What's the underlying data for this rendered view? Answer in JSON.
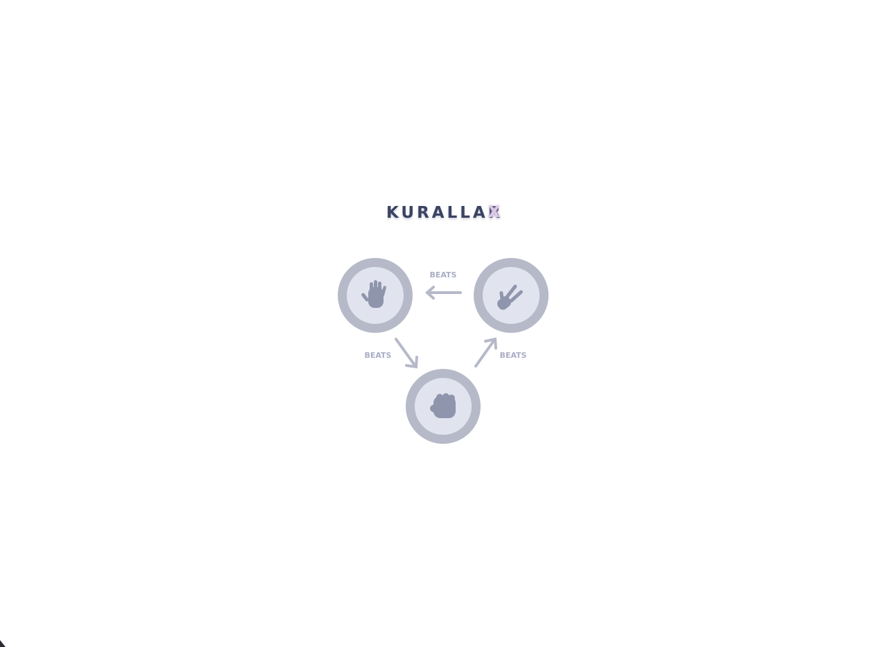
{
  "rules_modal": {
    "title": "KURALLAR",
    "close_label": "X"
  },
  "diagram": {
    "choices": [
      "paper",
      "scissors",
      "rock"
    ],
    "relations": [
      {
        "winner": "scissors",
        "loser": "paper",
        "label": "BEATS"
      },
      {
        "winner": "paper",
        "loser": "rock",
        "label": "BEATS"
      },
      {
        "winner": "rock",
        "loser": "scissors",
        "label": "BEATS"
      }
    ],
    "colors": {
      "ring": "#b6b9c8",
      "inner": "#e1e4ef",
      "icon": "#8f95ac",
      "arrow": "#b6b9c8",
      "label": "#a9adc5",
      "title": "#3b4363"
    }
  }
}
